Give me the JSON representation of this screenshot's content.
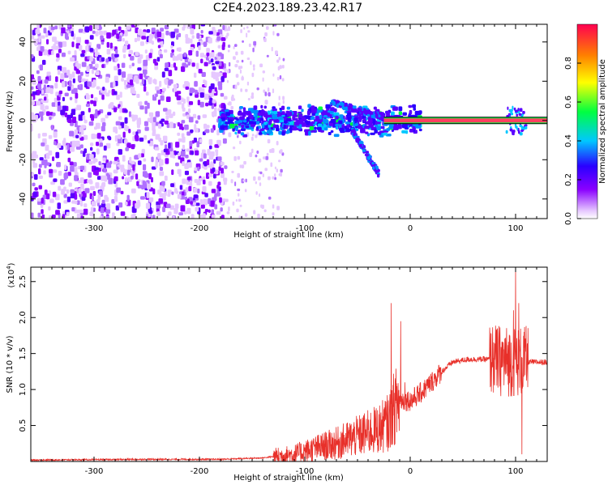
{
  "title": "C2E4.2023.189.23.42.R17",
  "colors": {
    "snr_line": "#e8302a",
    "colormap": [
      "#ffffff",
      "#e6c8ff",
      "#8a00ff",
      "#2a00ff",
      "#00c8ff",
      "#00ff40",
      "#ffff00",
      "#ff8000",
      "#ff0050"
    ],
    "track": "#ff4060"
  },
  "chart_data": [
    {
      "type": "heatmap",
      "xlabel": "Height of straight line (km)",
      "ylabel": "Frequency (Hz)",
      "xlim": [
        -360,
        130
      ],
      "ylim": [
        -50,
        49
      ],
      "xticks": [
        -300,
        -200,
        -100,
        0,
        100
      ],
      "yticks": [
        -40,
        -20,
        0,
        20,
        40
      ],
      "colorbar": {
        "label": "Normalized spectral amplitude",
        "range": [
          0,
          1
        ],
        "ticks": [
          "0.0",
          "0.2",
          "0.4",
          "0.6",
          "0.8"
        ]
      },
      "features": [
        {
          "kind": "broadband_noise",
          "x_range": [
            -360,
            -175
          ],
          "y_range": [
            -50,
            49
          ]
        },
        {
          "kind": "sparse_noise",
          "x_range": [
            -175,
            -120
          ],
          "y_range": [
            -50,
            49
          ]
        },
        {
          "kind": "signal_band",
          "x_range": [
            -180,
            10
          ],
          "center_hz": 0,
          "spread_hz": 8
        },
        {
          "kind": "rising_branch",
          "x_range": [
            -75,
            -25
          ],
          "y_range": [
            9,
            2
          ]
        },
        {
          "kind": "falling_branch",
          "x_range": [
            -55,
            -30
          ],
          "y_range": [
            -5,
            -27
          ]
        },
        {
          "kind": "carrier_line",
          "x_range": [
            -25,
            130
          ],
          "value_hz": 0
        },
        {
          "kind": "burst",
          "x_range": [
            90,
            110
          ],
          "center_hz": 0
        }
      ]
    },
    {
      "type": "line",
      "xlabel": "Height of straight line (km)",
      "ylabel": "SNR (10 * v/v)",
      "yscale_label": "(x10",
      "yscale_exp": "4",
      "xlim": [
        -360,
        130
      ],
      "ylim": [
        0,
        2.7
      ],
      "xticks": [
        -300,
        -200,
        -100,
        0,
        100
      ],
      "yticks": [
        0.5,
        1.0,
        1.5,
        2.0,
        2.5
      ],
      "ytick_labels": [
        "0.5",
        "1.0",
        "1.5",
        "2.0",
        "2.5"
      ],
      "baseline_points": [
        [
          -360,
          0.02
        ],
        [
          -250,
          0.03
        ],
        [
          -180,
          0.03
        ],
        [
          -140,
          0.05
        ],
        [
          -110,
          0.1
        ],
        [
          -90,
          0.18
        ],
        [
          -70,
          0.25
        ],
        [
          -50,
          0.35
        ],
        [
          -30,
          0.45
        ],
        [
          -20,
          0.55
        ],
        [
          -15,
          0.75
        ],
        [
          -10,
          0.85
        ],
        [
          0,
          0.85
        ],
        [
          10,
          0.95
        ],
        [
          20,
          1.1
        ],
        [
          30,
          1.25
        ],
        [
          40,
          1.38
        ],
        [
          55,
          1.42
        ],
        [
          75,
          1.42
        ],
        [
          85,
          1.4
        ],
        [
          115,
          1.38
        ],
        [
          130,
          1.38
        ]
      ],
      "spikes": [
        [
          -18,
          2.2
        ],
        [
          -9,
          1.95
        ],
        [
          -5,
          1.1
        ],
        [
          2,
          0.75
        ],
        [
          78,
          1.65
        ],
        [
          82,
          1.8
        ],
        [
          92,
          1.5
        ],
        [
          98,
          2.1
        ],
        [
          100,
          2.7
        ],
        [
          103,
          2.2
        ],
        [
          106,
          0.1
        ],
        [
          108,
          1.8
        ]
      ]
    }
  ]
}
